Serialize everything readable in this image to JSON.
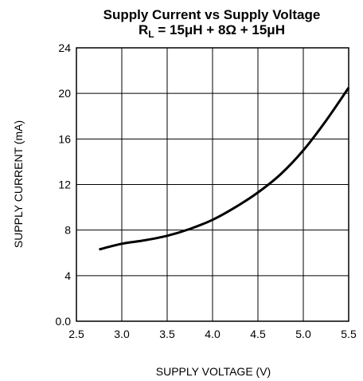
{
  "chart_data": {
    "type": "line",
    "title": "Supply Current vs Supply Voltage",
    "subtitle": {
      "prefix": "R",
      "subscript": "L",
      "suffix": " = 15μH + 8Ω + 15μH"
    },
    "xlabel": "SUPPLY VOLTAGE (V)",
    "ylabel": "SUPPLY CURRENT (mA)",
    "xlim": [
      2.5,
      5.5
    ],
    "ylim": [
      0,
      24
    ],
    "x_ticks": [
      "2.5",
      "3.0",
      "3.5",
      "4.0",
      "4.5",
      "5.0",
      "5.5"
    ],
    "y_ticks": [
      "0.0",
      "4",
      "8",
      "12",
      "16",
      "20",
      "24"
    ],
    "grid": true,
    "series": [
      {
        "x": [
          2.75,
          3.0,
          3.25,
          3.5,
          3.75,
          4.0,
          4.25,
          4.5,
          4.75,
          5.0,
          5.25,
          5.5
        ],
        "y": [
          6.3,
          6.8,
          7.1,
          7.5,
          8.1,
          8.9,
          10.0,
          11.3,
          12.9,
          15.0,
          17.6,
          20.5
        ]
      }
    ]
  }
}
